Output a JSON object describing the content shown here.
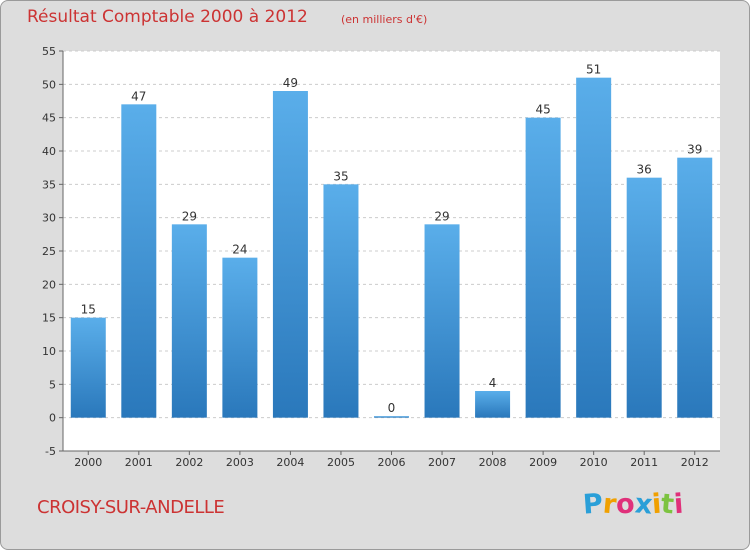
{
  "title": "Résultat Comptable 2000 à 2012",
  "subtitle": "(en milliers d'€)",
  "commune": "CROISY-SUR-ANDELLE",
  "logo": {
    "letters": [
      "P",
      "r",
      "o",
      "x",
      "i",
      "t",
      "i"
    ],
    "colors": [
      "#2a9fd8",
      "#f0a000",
      "#e0307a",
      "#2a9fd8",
      "#f0a000",
      "#7cc340",
      "#e0307a"
    ]
  },
  "colors": {
    "title": "#cc3333",
    "bar": "#4a9fe0",
    "bar_dark": "#2a78bb",
    "plot_bg": "#ffffff",
    "frame_bg": "#dddddd"
  },
  "chart_data": {
    "type": "bar",
    "title": "Résultat Comptable 2000 à 2012",
    "subtitle": "(en milliers d'€)",
    "categories": [
      "2000",
      "2001",
      "2002",
      "2003",
      "2004",
      "2005",
      "2006",
      "2007",
      "2008",
      "2009",
      "2010",
      "2011",
      "2012"
    ],
    "values": [
      15,
      47,
      29,
      24,
      49,
      35,
      0,
      29,
      4,
      45,
      51,
      36,
      39
    ],
    "value_labels": [
      "15",
      "47",
      "29",
      "24",
      "49",
      "35",
      "0",
      "29",
      "4",
      "45",
      "51",
      "36",
      "39"
    ],
    "ylim": [
      -5,
      55
    ],
    "yticks": [
      -5,
      0,
      5,
      10,
      15,
      20,
      25,
      30,
      35,
      40,
      45,
      50,
      55
    ],
    "ytick_labels": [
      "-5",
      "0",
      "5",
      "10",
      "15",
      "20",
      "25",
      "30",
      "35",
      "40",
      "45",
      "50",
      "55"
    ],
    "grid": true,
    "legend": "none"
  }
}
